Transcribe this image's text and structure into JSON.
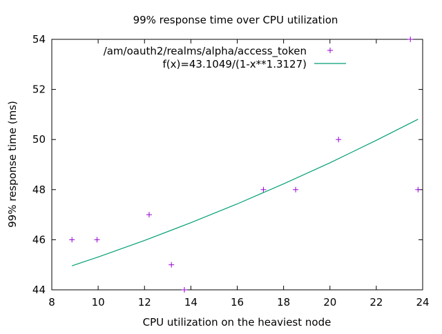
{
  "chart_data": {
    "type": "scatter",
    "title": "99% response time over CPU utilization",
    "xlabel": "CPU utilization on the heaviest node",
    "ylabel": "99% response time (ms)",
    "xlim": [
      8,
      24
    ],
    "ylim": [
      44,
      54
    ],
    "xticks": [
      8,
      10,
      12,
      14,
      16,
      18,
      20,
      22,
      24
    ],
    "yticks": [
      44,
      46,
      48,
      50,
      52,
      54
    ],
    "grid": false,
    "legend_position": "top-right",
    "series": [
      {
        "name": "/am/oauth2/realms/alpha/access_token",
        "kind": "points",
        "color": "#9400d3",
        "x": [
          8.87,
          9.95,
          12.2,
          13.16,
          13.72,
          17.13,
          18.52,
          20.37,
          23.47,
          23.8
        ],
        "y": [
          46,
          46,
          47,
          45,
          44,
          48,
          48,
          50,
          54,
          48
        ]
      },
      {
        "name": "f(x)=43.1049/(1-x**1.3127)",
        "kind": "line",
        "color": "#009e73",
        "x": [
          8.87,
          10,
          12,
          14,
          16,
          18,
          20,
          22,
          23.8
        ],
        "y": [
          44.96,
          45.31,
          45.97,
          46.68,
          47.43,
          48.23,
          49.07,
          49.97,
          50.81
        ]
      }
    ]
  }
}
